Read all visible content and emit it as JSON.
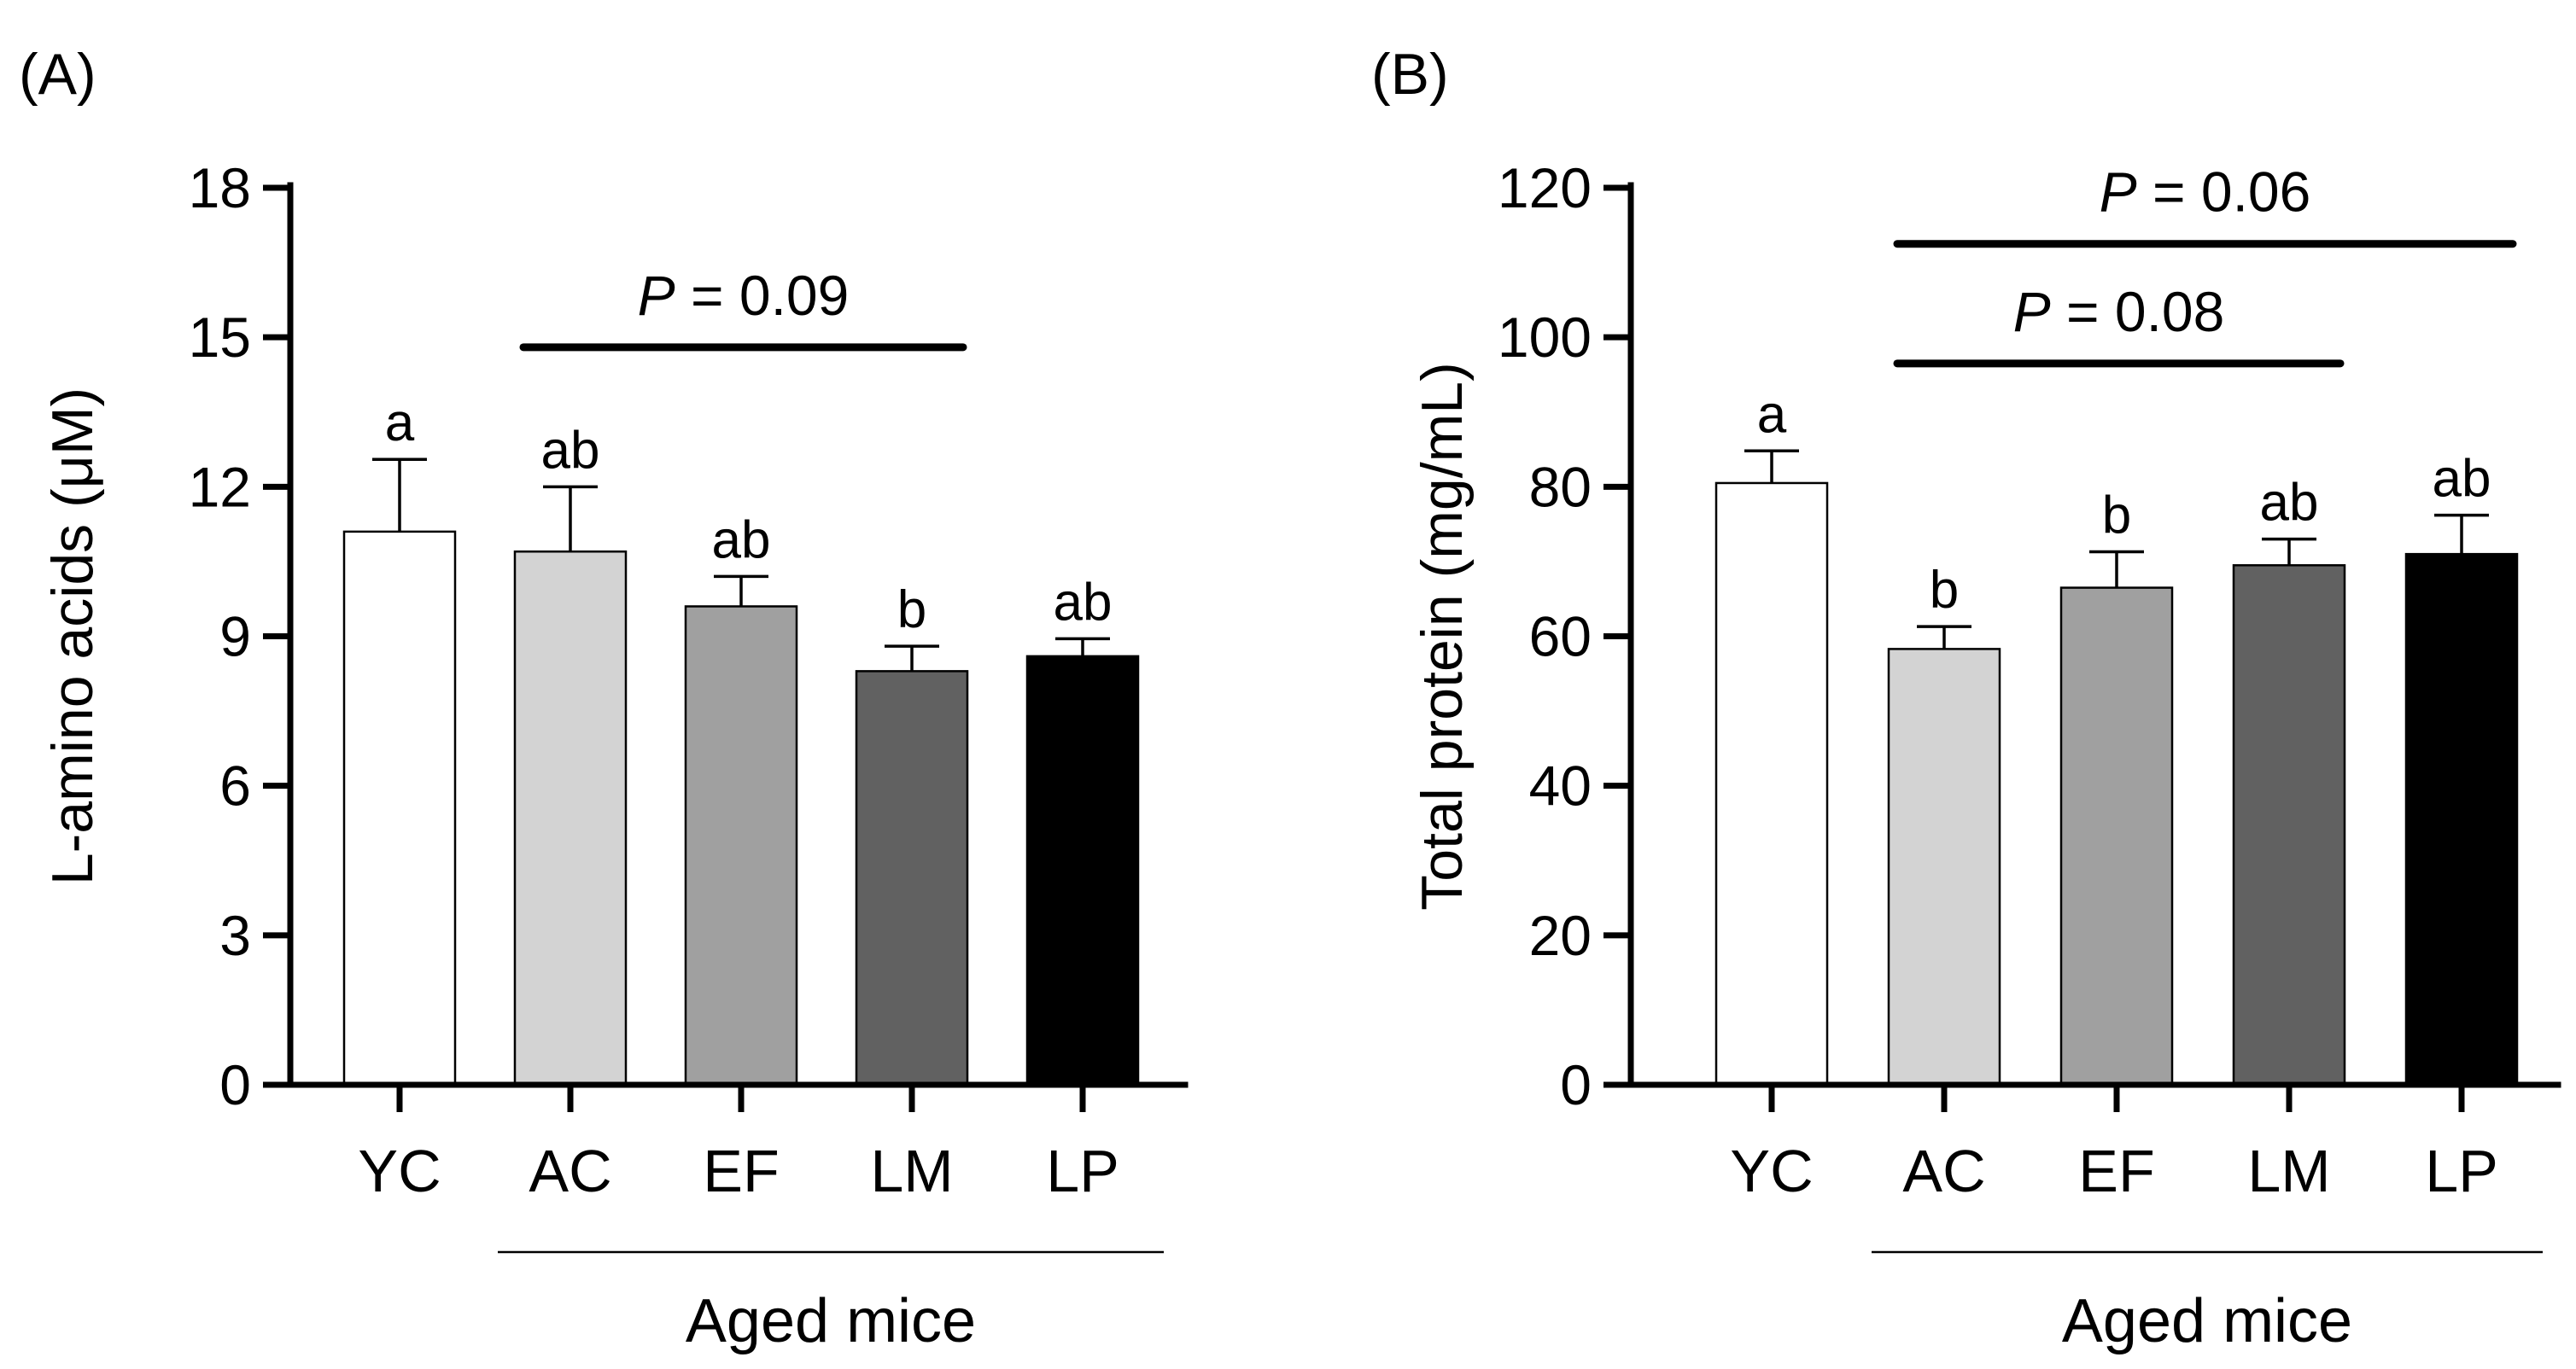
{
  "chart_data": [
    {
      "type": "bar",
      "panel_label": "(A)",
      "ylabel_main": "L-amino acids (",
      "ylabel_mu": "μ",
      "ylabel_tail": "M)",
      "categories": [
        "YC",
        "AC",
        "EF",
        "LM",
        "LP"
      ],
      "values": [
        11.1,
        10.7,
        9.6,
        8.3,
        8.6
      ],
      "errors": [
        1.45,
        1.3,
        0.6,
        0.5,
        0.35
      ],
      "sig_letters": [
        "a",
        "ab",
        "ab",
        "b",
        "ab"
      ],
      "bar_colors": [
        "#ffffff",
        "#d3d3d3",
        "#a0a0a0",
        "#616161",
        "#000000"
      ],
      "ylim": [
        0,
        18
      ],
      "yticks": [
        0,
        3,
        6,
        9,
        12,
        15,
        18
      ],
      "ytick_labels": [
        "0",
        "3",
        "6",
        "9",
        "12",
        "15",
        "18"
      ],
      "comparisons": [
        {
          "from": 1,
          "to": 3,
          "at": 14.8,
          "p_italic": "P",
          "p_text": " = 0.09"
        }
      ],
      "group": {
        "from": 1,
        "to": 4,
        "label": "Aged mice"
      }
    },
    {
      "type": "bar",
      "panel_label": "(B)",
      "ylabel_main": "Total protein (mg/mL)",
      "ylabel_mu": "",
      "ylabel_tail": "",
      "categories": [
        "YC",
        "AC",
        "EF",
        "LM",
        "LP"
      ],
      "values": [
        80.5,
        58.3,
        66.5,
        69.5,
        71.0
      ],
      "errors": [
        4.3,
        3.0,
        4.8,
        3.5,
        5.2
      ],
      "sig_letters": [
        "a",
        "b",
        "b",
        "ab",
        "ab"
      ],
      "bar_colors": [
        "#ffffff",
        "#d3d3d3",
        "#a0a0a0",
        "#616161",
        "#000000"
      ],
      "ylim": [
        0,
        120
      ],
      "yticks": [
        0,
        20,
        40,
        60,
        80,
        100,
        120
      ],
      "ytick_labels": [
        "0",
        "20",
        "40",
        "60",
        "80",
        "100",
        "120"
      ],
      "comparisons": [
        {
          "from": 1,
          "to": 3,
          "at": 96.5,
          "p_italic": "P",
          "p_text": " = 0.08"
        },
        {
          "from": 1,
          "to": 4,
          "at": 112.5,
          "p_italic": "P",
          "p_text": " = 0.06"
        }
      ],
      "group": {
        "from": 1,
        "to": 4,
        "label": "Aged mice"
      }
    }
  ]
}
